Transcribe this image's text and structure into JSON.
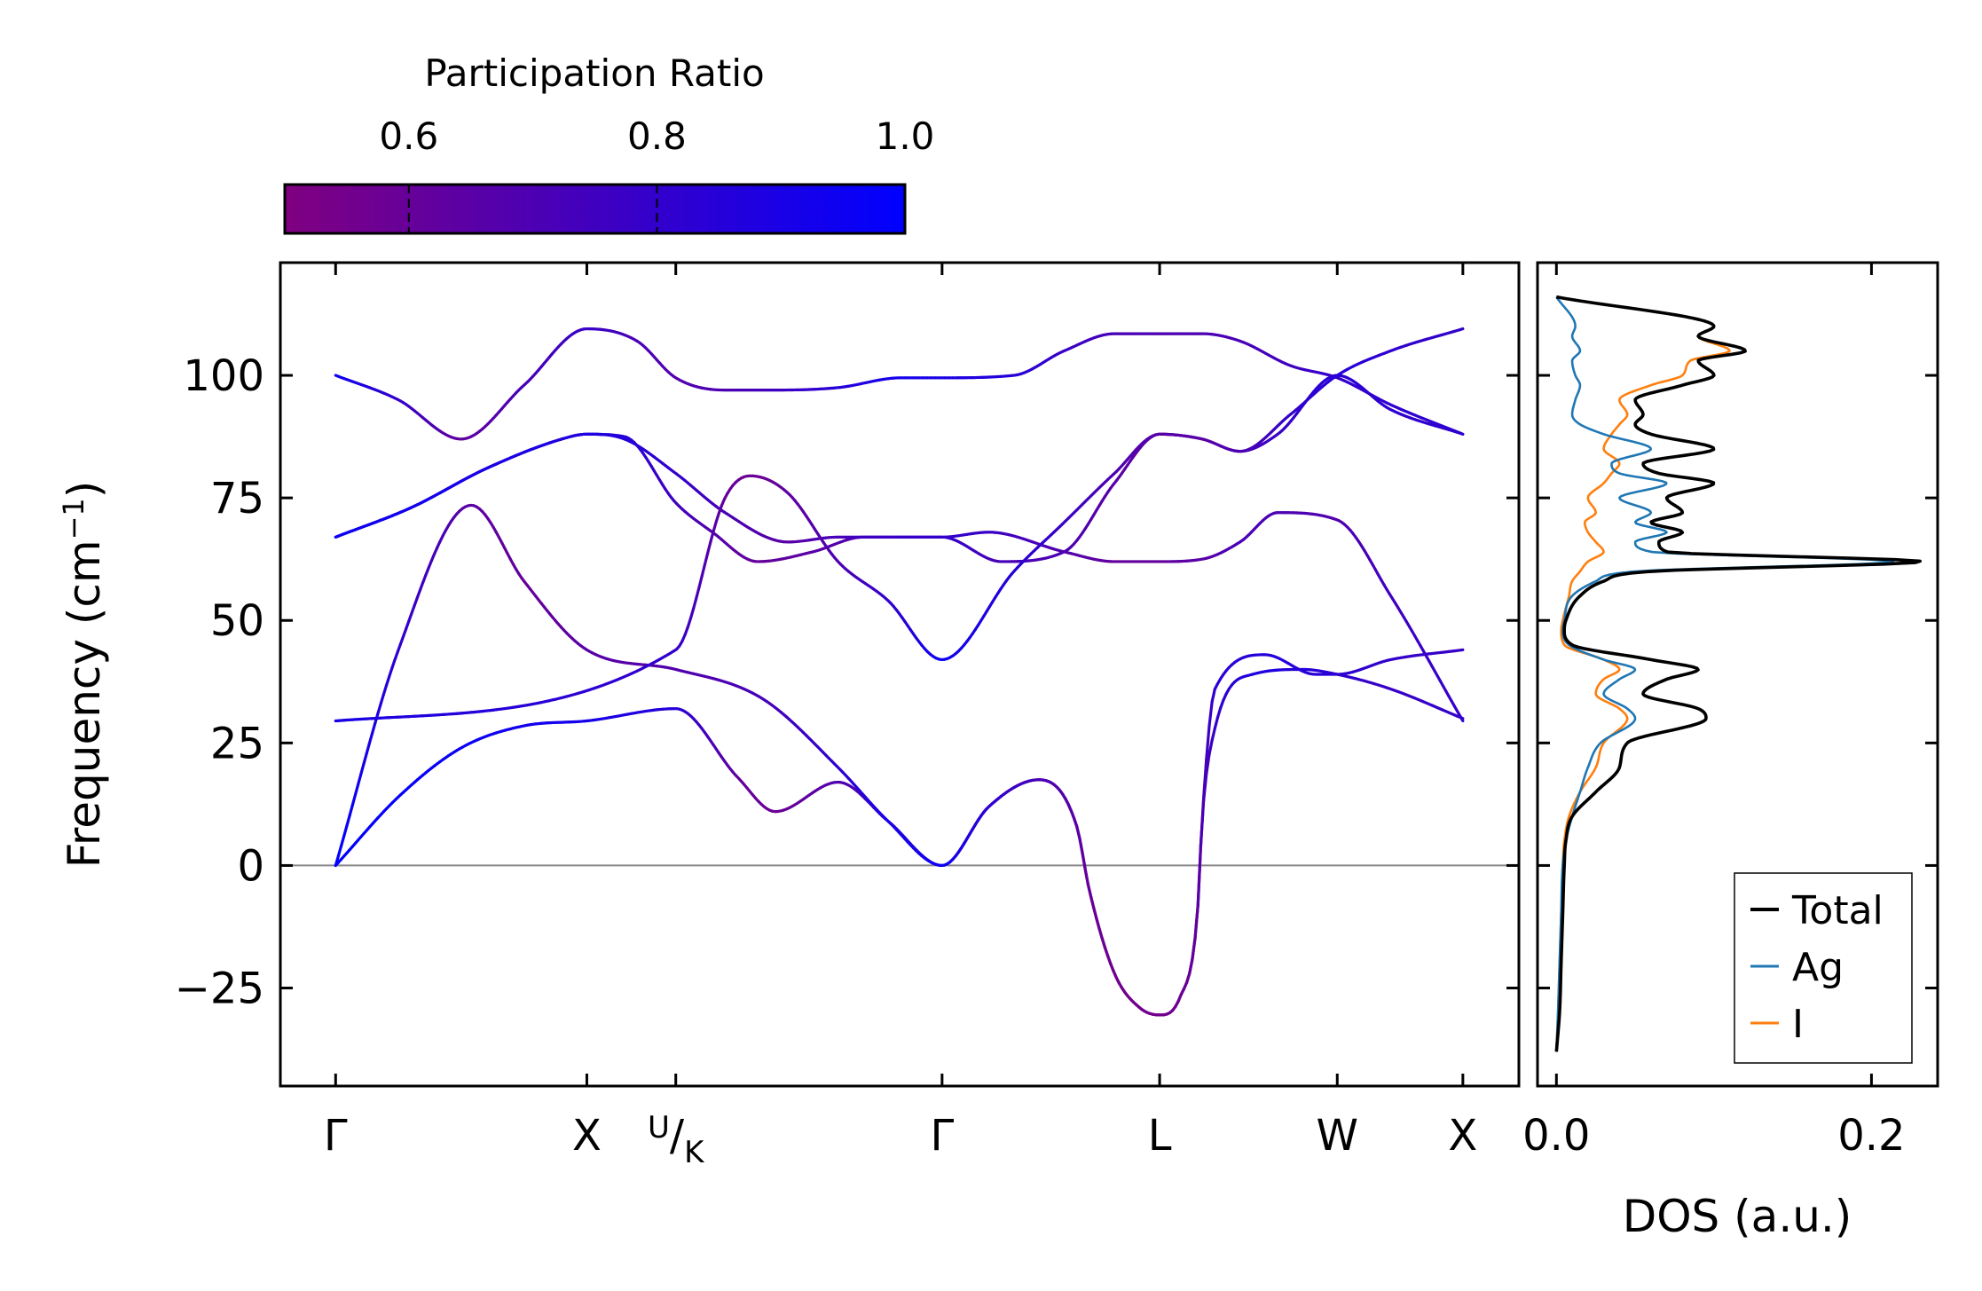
{
  "chart_data": [
    {
      "type": "line",
      "title": "",
      "ylabel": "Frequency (cm",
      "ylabel_sup": "−1",
      "ylabel_close": ")",
      "ylim": [
        -45,
        123
      ],
      "yticks": [
        -25,
        0,
        25,
        50,
        75,
        100
      ],
      "ytick_labels": [
        "−25",
        "0",
        "25",
        "50",
        "75",
        "100"
      ],
      "kpoints": [
        {
          "label": "Γ",
          "pos": 0.0
        },
        {
          "label": "X",
          "pos": 1.0
        },
        {
          "label": "U/K",
          "pos": 1.354
        },
        {
          "label": "Γ",
          "pos": 2.414
        },
        {
          "label": "L",
          "pos": 3.28
        },
        {
          "label": "W",
          "pos": 3.987
        },
        {
          "label": "X",
          "pos": 4.487
        }
      ],
      "xlim": [
        -0.22,
        4.71
      ],
      "zero_line": 0,
      "colorbar": {
        "title": "Participation Ratio",
        "range": [
          0.5,
          1.0
        ],
        "ticks": [
          0.6,
          0.8,
          1.0
        ],
        "tick_labels": [
          "0.6",
          "0.8",
          "1.0"
        ],
        "color_low": "#800080",
        "color_high": "#0000ff"
      },
      "series": [
        {
          "name": "band1",
          "x": [
            0,
            0.25,
            0.5,
            0.75,
            1.0,
            1.354,
            1.6,
            1.75,
            2.0,
            2.2,
            2.414,
            2.6,
            2.8,
            2.95,
            3.0,
            3.1,
            3.2,
            3.28,
            3.36,
            3.43,
            3.45,
            3.5,
            3.65,
            3.85,
            3.987,
            4.2,
            4.487
          ],
          "y": [
            0,
            14,
            24,
            28.5,
            29.5,
            32,
            18,
            11,
            17,
            9,
            0,
            12,
            17.5,
            8,
            -5,
            -22,
            -29,
            -30.5,
            -27,
            -10,
            10,
            28,
            39,
            40,
            39,
            36,
            30
          ],
          "pr": [
            1.0,
            0.98,
            0.96,
            0.93,
            0.92,
            0.85,
            0.62,
            0.58,
            0.68,
            0.78,
            0.95,
            0.82,
            0.72,
            0.65,
            0.6,
            0.56,
            0.55,
            0.55,
            0.57,
            0.62,
            0.7,
            0.8,
            0.88,
            0.86,
            0.82,
            0.78,
            0.8
          ]
        },
        {
          "name": "band2",
          "x": [
            0,
            0.25,
            0.54,
            0.75,
            1.0,
            1.354,
            1.7,
            2.0,
            2.2,
            2.414,
            2.6,
            2.8,
            2.95,
            3.0,
            3.1,
            3.2,
            3.28,
            3.36,
            3.43,
            3.45,
            3.5,
            3.7,
            3.9,
            3.987,
            4.2,
            4.487
          ],
          "y": [
            0,
            44,
            73.5,
            58,
            44,
            40,
            34,
            20,
            9,
            0,
            12,
            17.5,
            8,
            -5,
            -22,
            -29,
            -30.5,
            -27,
            -10,
            10,
            36,
            43,
            39,
            39,
            42,
            44
          ],
          "pr": [
            1.0,
            0.82,
            0.64,
            0.6,
            0.65,
            0.68,
            0.72,
            0.82,
            0.9,
            0.95,
            0.82,
            0.72,
            0.65,
            0.6,
            0.56,
            0.55,
            0.55,
            0.57,
            0.62,
            0.7,
            0.82,
            0.86,
            0.84,
            0.82,
            0.8,
            0.78
          ]
        },
        {
          "name": "band3",
          "x": [
            0,
            0.3,
            0.6,
            0.9,
            1.0,
            1.15,
            1.354,
            1.5,
            1.68,
            1.9,
            2.1,
            2.3,
            2.414,
            2.6,
            2.9,
            3.1,
            3.28,
            3.45,
            3.6,
            3.75,
            3.987,
            4.2,
            4.487
          ],
          "y": [
            67,
            73,
            81,
            87,
            88,
            87.5,
            74,
            68,
            62,
            64,
            67,
            67,
            67,
            68,
            64,
            62,
            62,
            62.5,
            66,
            72,
            70.5,
            55,
            29.5
          ],
          "pr": [
            0.95,
            0.93,
            0.9,
            0.88,
            0.88,
            0.85,
            0.75,
            0.68,
            0.6,
            0.65,
            0.7,
            0.75,
            0.8,
            0.78,
            0.68,
            0.62,
            0.62,
            0.65,
            0.72,
            0.7,
            0.68,
            0.75,
            0.8
          ]
        },
        {
          "name": "band4",
          "x": [
            0,
            0.3,
            0.6,
            0.9,
            1.0,
            1.15,
            1.354,
            1.55,
            1.8,
            2.0,
            2.2,
            2.414,
            2.65,
            2.9,
            3.1,
            3.28,
            3.45,
            3.6,
            3.75,
            3.987,
            4.2,
            4.487
          ],
          "y": [
            67,
            73,
            81,
            87,
            88,
            87,
            80,
            72,
            66,
            67,
            67,
            67,
            62,
            64,
            78,
            88,
            87,
            84.5,
            88,
            100,
            93,
            88
          ],
          "pr": [
            0.95,
            0.93,
            0.9,
            0.88,
            0.88,
            0.86,
            0.8,
            0.72,
            0.65,
            0.72,
            0.78,
            0.8,
            0.72,
            0.7,
            0.66,
            0.62,
            0.65,
            0.7,
            0.78,
            0.85,
            0.82,
            0.8
          ]
        },
        {
          "name": "band5",
          "x": [
            0,
            0.25,
            0.5,
            0.75,
            1.0,
            1.2,
            1.354,
            1.55,
            1.75,
            2.0,
            2.25,
            2.414,
            2.7,
            2.9,
            3.1,
            3.28,
            3.45,
            3.6,
            3.8,
            3.987,
            4.2,
            4.487
          ],
          "y": [
            100,
            95,
            87,
            98,
            109.5,
            107,
            99.5,
            97,
            97,
            97.5,
            99.5,
            99.5,
            100,
            105,
            108.5,
            108.5,
            108.5,
            107,
            102,
            99.5,
            94,
            88
          ],
          "pr": [
            0.95,
            0.8,
            0.62,
            0.72,
            0.78,
            0.72,
            0.68,
            0.7,
            0.75,
            0.85,
            0.92,
            0.9,
            0.85,
            0.78,
            0.72,
            0.7,
            0.7,
            0.72,
            0.75,
            0.8,
            0.82,
            0.82
          ]
        },
        {
          "name": "band6",
          "x": [
            0,
            1.354,
            1.55,
            1.65,
            1.8,
            2.0,
            2.2,
            2.414,
            2.7,
            2.9,
            3.1,
            3.28,
            3.45,
            3.6,
            3.8,
            3.987,
            4.2,
            4.487
          ],
          "y": [
            29.5,
            44,
            75,
            79.5,
            76,
            62,
            54,
            42,
            60,
            70,
            80,
            88,
            87,
            84.5,
            92,
            100,
            105,
            109.5
          ],
          "pr": [
            0.9,
            0.8,
            0.62,
            0.58,
            0.62,
            0.7,
            0.8,
            0.95,
            0.85,
            0.78,
            0.7,
            0.66,
            0.65,
            0.7,
            0.8,
            0.85,
            0.82,
            0.8
          ]
        }
      ]
    },
    {
      "type": "line",
      "xlabel": "DOS (a.u.)",
      "xlim": [
        -0.012,
        0.242
      ],
      "xticks": [
        0.0,
        0.2
      ],
      "xtick_labels": [
        "0.0",
        "0.2"
      ],
      "ylim": [
        -45,
        123
      ],
      "legend": {
        "placement": "bottom-right",
        "entries": [
          "Total",
          "Ag",
          "I"
        ]
      },
      "series": [
        {
          "name": "Total",
          "color": "#000000",
          "y": [
            -38,
            -30,
            -20,
            -10,
            0,
            5,
            10,
            15,
            20,
            25,
            30,
            32,
            35,
            38,
            40,
            42,
            45,
            48,
            50,
            55,
            58,
            60,
            62,
            64,
            66,
            68,
            70,
            72,
            75,
            78,
            80,
            82,
            85,
            88,
            90,
            92,
            95,
            98,
            100,
            103,
            105,
            108,
            110,
            116
          ],
          "x": [
            0.0,
            0.002,
            0.003,
            0.004,
            0.005,
            0.006,
            0.01,
            0.025,
            0.04,
            0.045,
            0.095,
            0.09,
            0.055,
            0.07,
            0.09,
            0.06,
            0.01,
            0.005,
            0.006,
            0.015,
            0.03,
            0.06,
            0.232,
            0.07,
            0.065,
            0.08,
            0.06,
            0.08,
            0.07,
            0.1,
            0.065,
            0.055,
            0.1,
            0.06,
            0.05,
            0.055,
            0.05,
            0.08,
            0.1,
            0.09,
            0.12,
            0.09,
            0.1,
            0.0
          ]
        },
        {
          "name": "Ag",
          "color": "#1f77b4",
          "y": [
            -38,
            -30,
            -20,
            -10,
            0,
            5,
            10,
            15,
            20,
            25,
            30,
            32,
            35,
            38,
            40,
            42,
            45,
            48,
            50,
            55,
            58,
            60,
            62,
            64,
            66,
            68,
            70,
            72,
            75,
            78,
            80,
            82,
            85,
            88,
            90,
            92,
            95,
            98,
            100,
            103,
            105,
            108,
            110,
            116
          ],
          "x": [
            0.0,
            0.001,
            0.002,
            0.003,
            0.004,
            0.006,
            0.01,
            0.015,
            0.02,
            0.028,
            0.05,
            0.045,
            0.03,
            0.04,
            0.05,
            0.03,
            0.008,
            0.004,
            0.005,
            0.01,
            0.025,
            0.05,
            0.215,
            0.06,
            0.05,
            0.07,
            0.05,
            0.06,
            0.04,
            0.07,
            0.04,
            0.035,
            0.06,
            0.03,
            0.015,
            0.01,
            0.012,
            0.015,
            0.012,
            0.01,
            0.015,
            0.01,
            0.012,
            0.0
          ]
        },
        {
          "name": "I",
          "color": "#ff7f0e",
          "y": [
            -38,
            -30,
            -20,
            -10,
            0,
            5,
            10,
            15,
            20,
            25,
            30,
            32,
            35,
            38,
            40,
            42,
            45,
            48,
            50,
            55,
            58,
            60,
            62,
            64,
            66,
            68,
            70,
            72,
            75,
            78,
            80,
            82,
            85,
            88,
            90,
            92,
            95,
            98,
            100,
            103,
            105,
            108,
            110,
            116
          ],
          "x": [
            0.0,
            0.001,
            0.002,
            0.003,
            0.004,
            0.005,
            0.008,
            0.015,
            0.025,
            0.03,
            0.045,
            0.04,
            0.025,
            0.03,
            0.04,
            0.03,
            0.005,
            0.003,
            0.004,
            0.008,
            0.01,
            0.015,
            0.02,
            0.03,
            0.025,
            0.02,
            0.018,
            0.025,
            0.02,
            0.03,
            0.035,
            0.04,
            0.03,
            0.035,
            0.04,
            0.045,
            0.04,
            0.06,
            0.08,
            0.085,
            0.11,
            0.09,
            0.1,
            0.0
          ]
        }
      ]
    }
  ]
}
